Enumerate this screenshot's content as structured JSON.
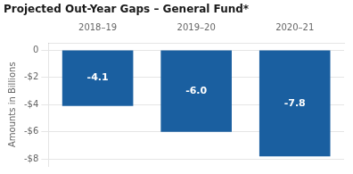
{
  "chart_data": {
    "type": "bar",
    "title": "Projected Out-Year Gaps – General Fund*",
    "categories": [
      "2018–19",
      "2019–20",
      "2020–21"
    ],
    "values": [
      -4.1,
      -6.0,
      -7.8
    ],
    "value_labels": [
      "-4.1",
      "-6.0",
      "-7.8"
    ],
    "data_labels": true,
    "color": "#1a5fa0",
    "ylabel": "Amounts in Billions",
    "ylim": [
      -8.5,
      0.5
    ],
    "yticks": [
      0,
      {
        "value": -2,
        "label": "-$2"
      },
      {
        "value": -4,
        "label": "-$4"
      },
      {
        "value": -6,
        "label": "-$6"
      },
      {
        "value": -8,
        "label": "-$8"
      }
    ],
    "grid": true
  }
}
